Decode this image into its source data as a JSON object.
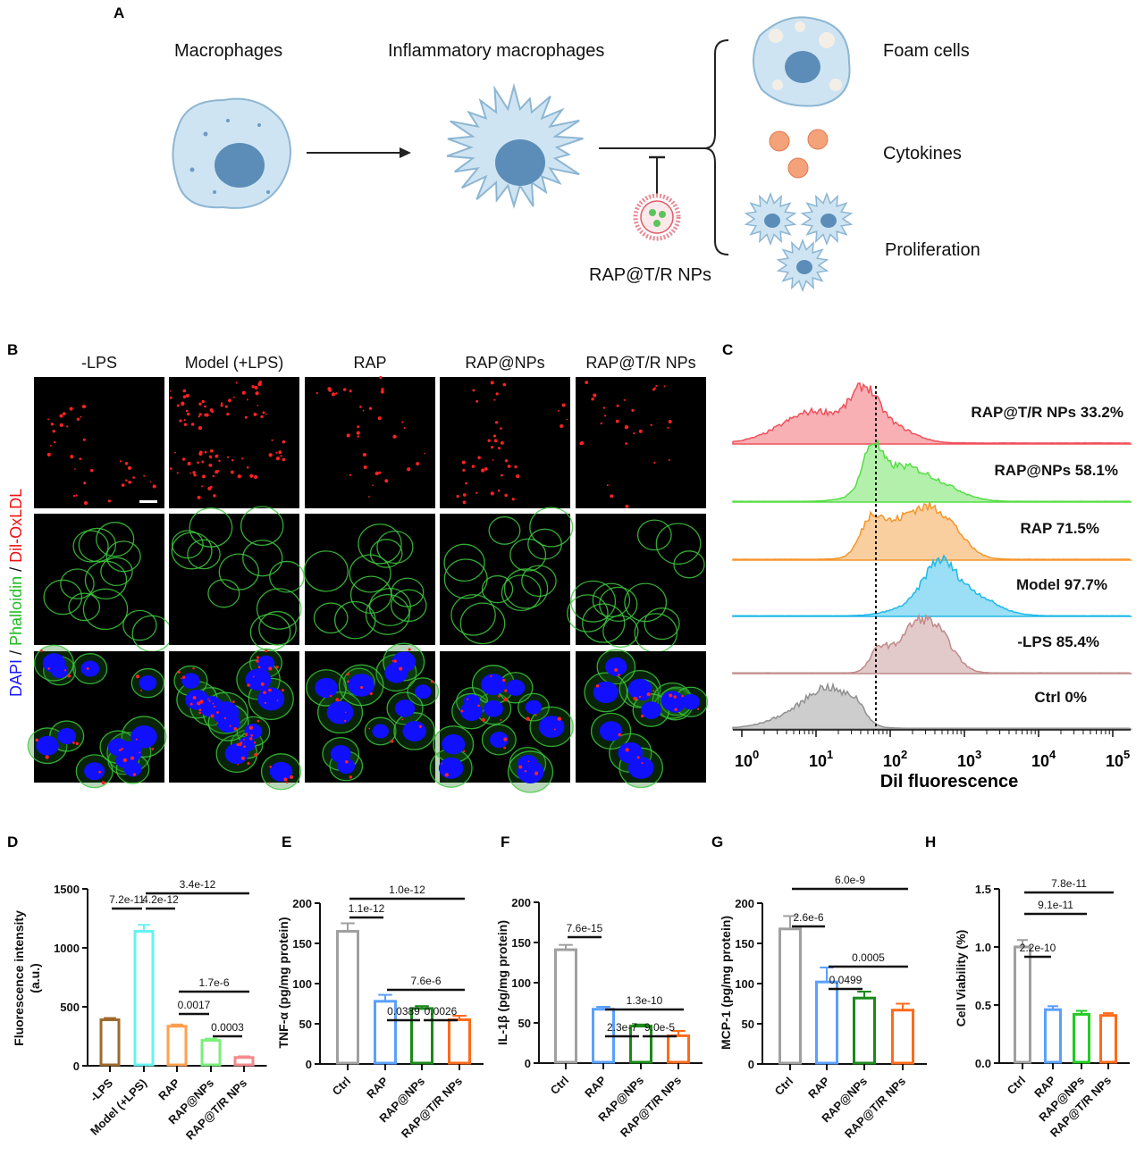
{
  "panels": {
    "A": "A",
    "B": "B",
    "C": "C",
    "D": "D",
    "E": "E",
    "F": "F",
    "G": "G",
    "H": "H"
  },
  "schematic": {
    "macrophages": "Macrophages",
    "inflammatory": "Inflammatory macrophages",
    "foam_cells": "Foam cells",
    "cytokines": "Cytokines",
    "proliferation": "Proliferation",
    "nanoparticle": "RAP@T/R NPs"
  },
  "microscopy": {
    "columns": [
      "-LPS",
      "Model (+LPS)",
      "RAP",
      "RAP@NPs",
      "RAP@T/R NPs"
    ],
    "side_label": {
      "dapi": "DAPI",
      "sep1": " / ",
      "phalloidin": "Phalloidin",
      "sep2": " / ",
      "dil": "Dil-OxLDL"
    },
    "colors": {
      "dapi": "#1a1aff",
      "phalloidin": "#22bb22",
      "dil": "#ee1111"
    }
  },
  "flow": {
    "xlabel": "Dil fluorescence",
    "ticks": [
      "10",
      "10",
      "10",
      "10",
      "10",
      "10"
    ],
    "exponents": [
      "0",
      "1",
      "2",
      "3",
      "4",
      "5"
    ],
    "histograms": [
      {
        "label": "RAP@T/R NPs 33.2%",
        "color": "#f0505a"
      },
      {
        "label": "RAP@NPs 58.1%",
        "color": "#55dd44"
      },
      {
        "label": "RAP 71.5%",
        "color": "#f5952a"
      },
      {
        "label": "Model 97.7%",
        "color": "#20b8e8"
      },
      {
        "label": "-LPS 85.4%",
        "color": "#c08a8a"
      },
      {
        "label": "Ctrl 0%",
        "color": "#909090"
      }
    ]
  },
  "chart_data": [
    {
      "id": "D",
      "type": "bar",
      "ylabel": "Fluorescence intensity",
      "ylabel2": "(a.u.)",
      "ylim": [
        0,
        1500
      ],
      "yticks": [
        "0",
        "500",
        "1000",
        "1500"
      ],
      "ytick_values": [
        0,
        500,
        1000,
        1500
      ],
      "categories": [
        "-LPS",
        "Model (+LPS)",
        "RAP",
        "RAP@NPs",
        "RAP@T/R NPs"
      ],
      "values": [
        390,
        1140,
        335,
        215,
        70
      ],
      "errors": [
        15,
        55,
        15,
        15,
        10
      ],
      "colors": [
        "#9c6a2e",
        "#66f2f2",
        "#ffa050",
        "#7af07a",
        "#f58a8a"
      ],
      "comparisons": [
        {
          "pair": [
            0,
            1
          ],
          "p": "7.2e-11"
        },
        {
          "pair": [
            1,
            2
          ],
          "p": "4.2e-12"
        },
        {
          "pair": [
            1,
            4
          ],
          "p": "3.4e-12"
        },
        {
          "pair": [
            2,
            4
          ],
          "p": "1.7e-6"
        },
        {
          "pair": [
            2,
            3
          ],
          "p": "0.0017"
        },
        {
          "pair": [
            3,
            4
          ],
          "p": "0.0003"
        }
      ]
    },
    {
      "id": "E",
      "type": "bar",
      "ylabel": "TNF-α (pg/mg protein)",
      "ylim": [
        0,
        200
      ],
      "yticks": [
        "0",
        "50",
        "100",
        "150",
        "200"
      ],
      "ytick_values": [
        0,
        50,
        100,
        150,
        200
      ],
      "categories": [
        "Ctrl",
        "RAP",
        "RAP@NPs",
        "RAP@T/R NPs"
      ],
      "values": [
        165,
        78,
        69,
        55
      ],
      "errors": [
        10,
        8,
        3,
        5
      ],
      "colors": [
        "#a0a0a0",
        "#5aa0ff",
        "#1a8a1a",
        "#ff6a1a"
      ],
      "comparisons": [
        {
          "pair": [
            0,
            3
          ],
          "p": "1.0e-12"
        },
        {
          "pair": [
            0,
            1
          ],
          "p": "1.1e-12"
        },
        {
          "pair": [
            1,
            3
          ],
          "p": "7.6e-6"
        },
        {
          "pair": [
            1,
            2
          ],
          "p": "0.0389"
        },
        {
          "pair": [
            2,
            3
          ],
          "p": "0.0026"
        }
      ]
    },
    {
      "id": "F",
      "type": "bar",
      "ylabel": "IL-1β (pg/mg protein)",
      "ylim": [
        0,
        200
      ],
      "yticks": [
        "0",
        "50",
        "100",
        "150",
        "200"
      ],
      "ytick_values": [
        0,
        50,
        100,
        150,
        200
      ],
      "categories": [
        "Ctrl",
        "RAP",
        "RAP@NPs",
        "RAP@T/R NPs"
      ],
      "values": [
        141,
        67,
        46,
        34
      ],
      "errors": [
        6,
        3,
        2,
        6
      ],
      "colors": [
        "#a0a0a0",
        "#5aa0ff",
        "#1a8a1a",
        "#ff6a1a"
      ],
      "comparisons": [
        {
          "pair": [
            0,
            1
          ],
          "p": "7.6e-15"
        },
        {
          "pair": [
            1,
            3
          ],
          "p": "1.3e-10"
        },
        {
          "pair": [
            1,
            2
          ],
          "p": "2.3e-7"
        },
        {
          "pair": [
            2,
            3
          ],
          "p": "9.0e-5"
        }
      ]
    },
    {
      "id": "G",
      "type": "bar",
      "ylabel": "MCP-1 (pg/mg protein)",
      "ylim": [
        0,
        200
      ],
      "yticks": [
        "0",
        "50",
        "100",
        "150",
        "200"
      ],
      "ytick_values": [
        0,
        50,
        100,
        150,
        200
      ],
      "categories": [
        "Ctrl",
        "RAP",
        "RAP@NPs",
        "RAP@T/R NPs"
      ],
      "values": [
        168,
        102,
        82,
        67
      ],
      "errors": [
        16,
        18,
        8,
        8
      ],
      "colors": [
        "#a0a0a0",
        "#5aa0ff",
        "#1a8a1a",
        "#ff6a1a"
      ],
      "comparisons": [
        {
          "pair": [
            0,
            3
          ],
          "p": "6.0e-9"
        },
        {
          "pair": [
            0,
            1
          ],
          "p": "2.6e-6"
        },
        {
          "pair": [
            1,
            3
          ],
          "p": "0.0005"
        },
        {
          "pair": [
            1,
            2
          ],
          "p": "0.0499"
        }
      ]
    },
    {
      "id": "H",
      "type": "bar",
      "ylabel": "Cell Viability (%)",
      "ylim": [
        0,
        1.5
      ],
      "yticks": [
        "0.0",
        "0.5",
        "1.0",
        "1.5"
      ],
      "ytick_values": [
        0,
        0.5,
        1,
        1.5
      ],
      "categories": [
        "Ctrl",
        "RAP",
        "RAP@NPs",
        "RAP@T/R NPs"
      ],
      "values": [
        1.0,
        0.46,
        0.42,
        0.41
      ],
      "errors": [
        0.06,
        0.03,
        0.03,
        0.02
      ],
      "colors": [
        "#a0a0a0",
        "#5aa0ff",
        "#22cc22",
        "#ff6a1a"
      ],
      "comparisons": [
        {
          "pair": [
            0,
            3
          ],
          "p": "7.8e-11"
        },
        {
          "pair": [
            0,
            2
          ],
          "p": "9.1e-11"
        },
        {
          "pair": [
            0,
            1
          ],
          "p": "2.2e-10"
        }
      ]
    }
  ]
}
